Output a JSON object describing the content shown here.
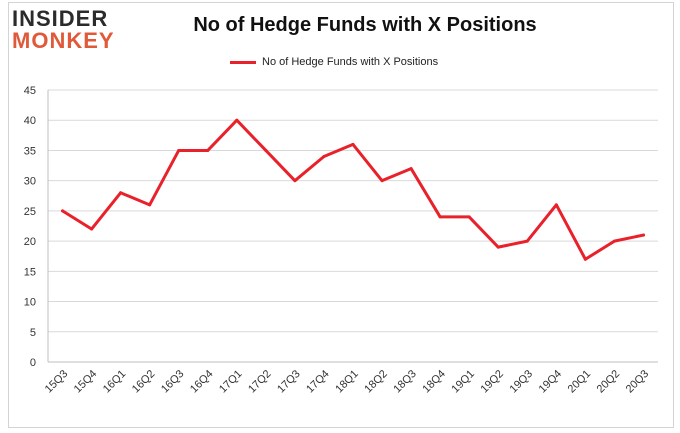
{
  "logo": {
    "line1": "INSIDER",
    "line2": "MONKEY"
  },
  "chart_data": {
    "type": "line",
    "title": "No of Hedge Funds with X Positions",
    "categories": [
      "15Q3",
      "15Q4",
      "16Q1",
      "16Q2",
      "16Q3",
      "16Q4",
      "17Q1",
      "17Q2",
      "17Q3",
      "17Q4",
      "18Q1",
      "18Q2",
      "18Q3",
      "18Q4",
      "19Q1",
      "19Q2",
      "19Q3",
      "19Q4",
      "20Q1",
      "20Q2",
      "20Q3"
    ],
    "series": [
      {
        "name": "No of Hedge Funds with X Positions",
        "values": [
          25,
          22,
          28,
          26,
          35,
          35,
          40,
          35,
          30,
          34,
          36,
          30,
          32,
          24,
          24,
          19,
          20,
          26,
          17,
          20,
          21
        ],
        "color": "#e8212a"
      }
    ],
    "ylim": [
      0,
      45
    ],
    "yticks": [
      0,
      5,
      10,
      15,
      20,
      25,
      30,
      35,
      40,
      45
    ],
    "grid": true,
    "legend_position": "top-center"
  }
}
